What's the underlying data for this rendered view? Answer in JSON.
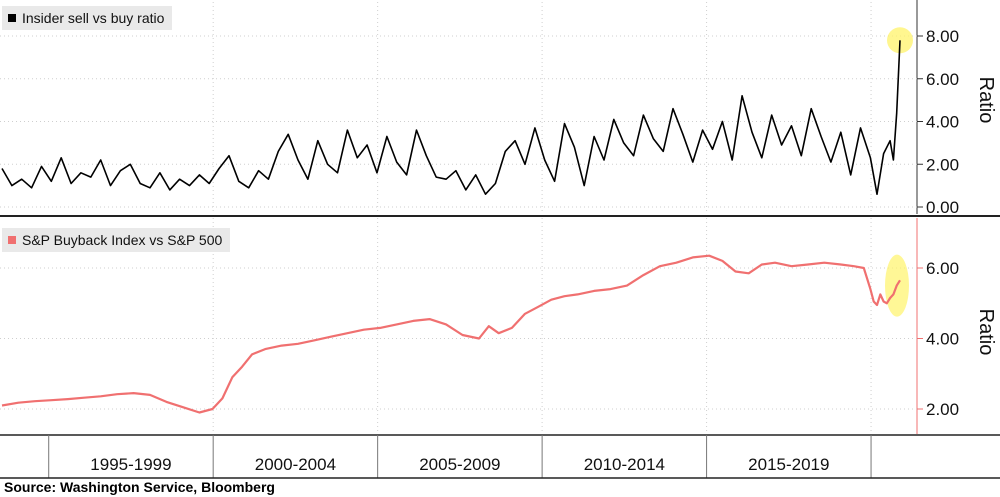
{
  "source_text": "Source: Washington Service, Bloomberg",
  "colors": {
    "top_line": "#000000",
    "bottom_line": "#f07070",
    "highlight": "#fff36a",
    "grid": "#cccccc"
  },
  "period_labels": [
    "1995-1999",
    "2000-2004",
    "2005-2009",
    "2010-2014",
    "2015-2019"
  ],
  "chart_data": [
    {
      "type": "line",
      "legend": "Insider sell vs buy ratio",
      "ylabel": "Ratio",
      "ylim": [
        0,
        9
      ],
      "yticks": [
        "0.00",
        "2.00",
        "4.00",
        "6.00",
        "8.00"
      ],
      "xlim": [
        1993.5,
        2020.8
      ],
      "grid": true,
      "legend_position": "top-left",
      "x": [
        1993.5,
        1993.8,
        1994.1,
        1994.4,
        1994.7,
        1995.0,
        1995.3,
        1995.6,
        1995.9,
        1996.2,
        1996.5,
        1996.8,
        1997.1,
        1997.4,
        1997.7,
        1998.0,
        1998.3,
        1998.6,
        1998.9,
        1999.2,
        1999.5,
        1999.8,
        2000.1,
        2000.4,
        2000.7,
        2001.0,
        2001.3,
        2001.6,
        2001.9,
        2002.2,
        2002.5,
        2002.8,
        2003.1,
        2003.4,
        2003.7,
        2004.0,
        2004.3,
        2004.6,
        2004.9,
        2005.2,
        2005.5,
        2005.8,
        2006.1,
        2006.4,
        2006.7,
        2007.0,
        2007.3,
        2007.6,
        2007.9,
        2008.2,
        2008.5,
        2008.8,
        2009.1,
        2009.4,
        2009.7,
        2010.0,
        2010.3,
        2010.6,
        2010.9,
        2011.2,
        2011.5,
        2011.8,
        2012.1,
        2012.4,
        2012.7,
        2013.0,
        2013.3,
        2013.6,
        2013.9,
        2014.2,
        2014.5,
        2014.8,
        2015.1,
        2015.4,
        2015.7,
        2016.0,
        2016.3,
        2016.6,
        2016.9,
        2017.2,
        2017.5,
        2017.8,
        2018.1,
        2018.4,
        2018.7,
        2019.0,
        2019.3,
        2019.6,
        2019.9,
        2020.1,
        2020.3,
        2020.5,
        2020.6,
        2020.7,
        2020.8
      ],
      "values": [
        1.8,
        1.0,
        1.3,
        0.9,
        1.9,
        1.2,
        2.3,
        1.1,
        1.6,
        1.4,
        2.2,
        1.0,
        1.7,
        2.0,
        1.1,
        0.9,
        1.6,
        0.8,
        1.3,
        1.0,
        1.5,
        1.1,
        1.8,
        2.4,
        1.2,
        0.9,
        1.7,
        1.3,
        2.6,
        3.4,
        2.2,
        1.3,
        3.1,
        2.0,
        1.6,
        3.6,
        2.3,
        2.9,
        1.6,
        3.3,
        2.1,
        1.5,
        3.6,
        2.4,
        1.4,
        1.3,
        1.7,
        0.8,
        1.5,
        0.6,
        1.1,
        2.6,
        3.1,
        2.0,
        3.7,
        2.2,
        1.2,
        3.9,
        2.8,
        1.0,
        3.3,
        2.2,
        4.1,
        3.0,
        2.4,
        4.3,
        3.2,
        2.6,
        4.6,
        3.4,
        2.1,
        3.6,
        2.7,
        4.0,
        2.2,
        5.2,
        3.5,
        2.3,
        4.3,
        2.9,
        3.8,
        2.4,
        4.6,
        3.3,
        2.1,
        3.5,
        1.5,
        3.7,
        2.3,
        0.6,
        2.5,
        3.1,
        2.2,
        4.4,
        7.8
      ]
    },
    {
      "type": "line",
      "legend": "S&P Buyback Index vs S&P 500",
      "ylabel": "Ratio",
      "ylim": [
        1.3,
        7.2
      ],
      "yticks": [
        "2.00",
        "4.00",
        "6.00"
      ],
      "xlim": [
        1993.5,
        2020.8
      ],
      "grid": true,
      "legend_position": "top-left",
      "x": [
        1993.5,
        1994.0,
        1994.5,
        1995.0,
        1995.5,
        1996.0,
        1996.5,
        1997.0,
        1997.5,
        1998.0,
        1998.5,
        1999.0,
        1999.5,
        1999.9,
        2000.2,
        2000.5,
        2000.8,
        2001.1,
        2001.5,
        2002.0,
        2002.5,
        2003.0,
        2003.5,
        2004.0,
        2004.5,
        2005.0,
        2005.5,
        2006.0,
        2006.5,
        2007.0,
        2007.5,
        2008.0,
        2008.3,
        2008.6,
        2009.0,
        2009.4,
        2009.8,
        2010.2,
        2010.6,
        2011.0,
        2011.5,
        2012.0,
        2012.5,
        2013.0,
        2013.5,
        2014.0,
        2014.5,
        2015.0,
        2015.4,
        2015.8,
        2016.2,
        2016.6,
        2017.0,
        2017.5,
        2018.0,
        2018.5,
        2019.0,
        2019.4,
        2019.7,
        2019.9,
        2020.0,
        2020.1,
        2020.2,
        2020.3,
        2020.4,
        2020.5,
        2020.6,
        2020.7,
        2020.8
      ],
      "values": [
        2.1,
        2.18,
        2.22,
        2.25,
        2.28,
        2.32,
        2.36,
        2.42,
        2.45,
        2.4,
        2.2,
        2.05,
        1.9,
        2.0,
        2.3,
        2.9,
        3.2,
        3.55,
        3.7,
        3.8,
        3.85,
        3.95,
        4.05,
        4.15,
        4.25,
        4.3,
        4.4,
        4.5,
        4.55,
        4.4,
        4.1,
        4.0,
        4.35,
        4.15,
        4.3,
        4.7,
        4.9,
        5.1,
        5.2,
        5.25,
        5.35,
        5.4,
        5.5,
        5.8,
        6.05,
        6.15,
        6.3,
        6.35,
        6.2,
        5.9,
        5.85,
        6.1,
        6.15,
        6.05,
        6.1,
        6.15,
        6.1,
        6.05,
        6.0,
        5.4,
        5.05,
        4.95,
        5.25,
        5.05,
        5.0,
        5.15,
        5.25,
        5.5,
        5.65
      ]
    }
  ]
}
